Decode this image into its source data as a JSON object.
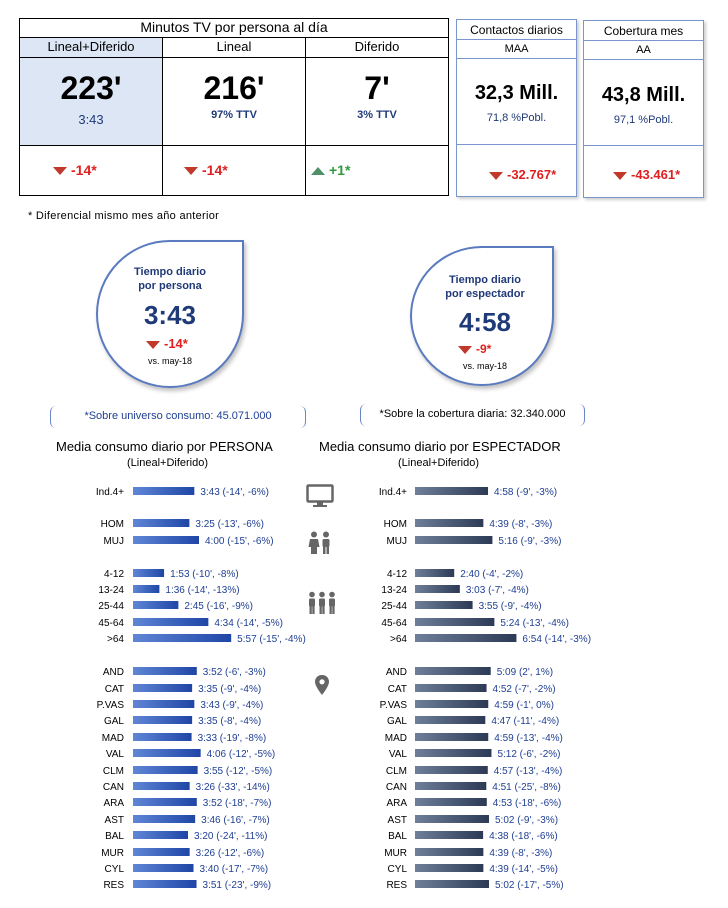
{
  "summary": {
    "header": "Minutos TV por persona al día",
    "columns": [
      {
        "label": "Lineal+Diferido",
        "value": "223'",
        "sub": "3:43",
        "delta": "-14*",
        "direction": "down"
      },
      {
        "label": "Lineal",
        "value": "216'",
        "sub": "97% TTV",
        "delta": "-14*",
        "direction": "down"
      },
      {
        "label": "Diferido",
        "value": "7'",
        "sub": "3% TTV",
        "delta": "+1*",
        "direction": "up"
      }
    ],
    "footnote": "* Diferencial mismo mes año anterior"
  },
  "contactos": {
    "title": "Contactos diarios",
    "subtitle": "MAA",
    "value": "32,3 Mill.",
    "pct": "71,8 %Pobl.",
    "delta": "-32.767*"
  },
  "cobertura": {
    "title": "Cobertura mes",
    "subtitle": "AA",
    "value": "43,8 Mill.",
    "pct": "97,1 %Pobl.",
    "delta": "-43.461*"
  },
  "tiempo_persona": {
    "title_line1": "Tiempo diario",
    "title_line2": "por persona",
    "value": "3:43",
    "delta": "-14*",
    "vs": "vs. may-18",
    "note": "*Sobre universo consumo: 45.071.000"
  },
  "tiempo_espectador": {
    "title_line1": "Tiempo diario",
    "title_line2": "por espectador",
    "value": "4:58",
    "delta": "-9*",
    "vs": "vs. may-18",
    "note": "*Sobre la cobertura diaria: 32.340.000"
  },
  "colors": {
    "bar_persona": "#2f5bb5",
    "bar_espectador": "#3a4a66",
    "label_persona": "#1f3f94",
    "label_espectador": "#1f3f94",
    "down": "#c0392b",
    "up": "#4f8f6a"
  },
  "chart_data": [
    {
      "type": "bar",
      "orientation": "horizontal",
      "title": "Media consumo diario por PERSONA",
      "subtitle": "(Lineal+Diferido)",
      "unit": "minutes",
      "categories": [
        "Ind.4+",
        "HOM",
        "MUJ",
        "4-12",
        "13-24",
        "25-44",
        "45-64",
        ">64",
        "AND",
        "CAT",
        "P.VAS",
        "GAL",
        "MAD",
        "VAL",
        "CLM",
        "CAN",
        "ARA",
        "AST",
        "BAL",
        "MUR",
        "CYL",
        "RES"
      ],
      "values": [
        223,
        205,
        240,
        113,
        96,
        165,
        274,
        357,
        232,
        215,
        223,
        215,
        213,
        246,
        235,
        206,
        232,
        226,
        200,
        206,
        220,
        231
      ],
      "labels": [
        "3:43 (-14', -6%)",
        "3:25 (-13', -6%)",
        "4:00 (-15', -6%)",
        "1:53 (-10', -8%)",
        "1:36 (-14', -13%)",
        "2:45 (-16', -9%)",
        "4:34 (-14', -5%)",
        "5:57 (-15', -4%)",
        "3:52 (-6', -3%)",
        "3:35 (-9', -4%)",
        "3:43 (-9', -4%)",
        "3:35 (-8', -4%)",
        "3:33 (-19', -8%)",
        "4:06 (-12', -5%)",
        "3:55 (-12', -5%)",
        "3:26 (-33', -14%)",
        "3:52 (-18', -7%)",
        "3:46 (-16', -7%)",
        "3:20 (-24', -11%)",
        "3:26 (-12', -6%)",
        "3:40 (-17', -7%)",
        "3:51 (-23', -9%)"
      ]
    },
    {
      "type": "bar",
      "orientation": "horizontal",
      "title": "Media consumo diario por ESPECTADOR",
      "subtitle": "(Lineal+Diferido)",
      "unit": "minutes",
      "categories": [
        "Ind.4+",
        "HOM",
        "MUJ",
        "4-12",
        "13-24",
        "25-44",
        "45-64",
        ">64",
        "AND",
        "CAT",
        "P.VAS",
        "GAL",
        "MAD",
        "VAL",
        "CLM",
        "CAN",
        "ARA",
        "AST",
        "BAL",
        "MUR",
        "CYL",
        "RES"
      ],
      "values": [
        298,
        279,
        316,
        160,
        183,
        235,
        324,
        414,
        309,
        292,
        299,
        287,
        299,
        312,
        297,
        291,
        293,
        302,
        278,
        279,
        279,
        302
      ],
      "labels": [
        "4:58 (-9', -3%)",
        "4:39 (-8', -3%)",
        "5:16 (-9', -3%)",
        "2:40 (-4', -2%)",
        "3:03 (-7', -4%)",
        "3:55 (-9', -4%)",
        "5:24 (-13', -4%)",
        "6:54 (-14', -3%)",
        "5:09 (2', 1%)",
        "4:52 (-7', -2%)",
        "4:59 (-1', 0%)",
        "4:47 (-11', -4%)",
        "4:59 (-13', -4%)",
        "5:12 (-6', -2%)",
        "4:57 (-13', -4%)",
        "4:51 (-25', -8%)",
        "4:53 (-18', -6%)",
        "5:02 (-9', -3%)",
        "4:38 (-18', -6%)",
        "4:39 (-8', -3%)",
        "4:39 (-14', -5%)",
        "5:02 (-17', -5%)"
      ]
    }
  ],
  "icons": [
    "tv-icon",
    "couple-icon",
    "group-icon",
    "location-pin-icon"
  ]
}
